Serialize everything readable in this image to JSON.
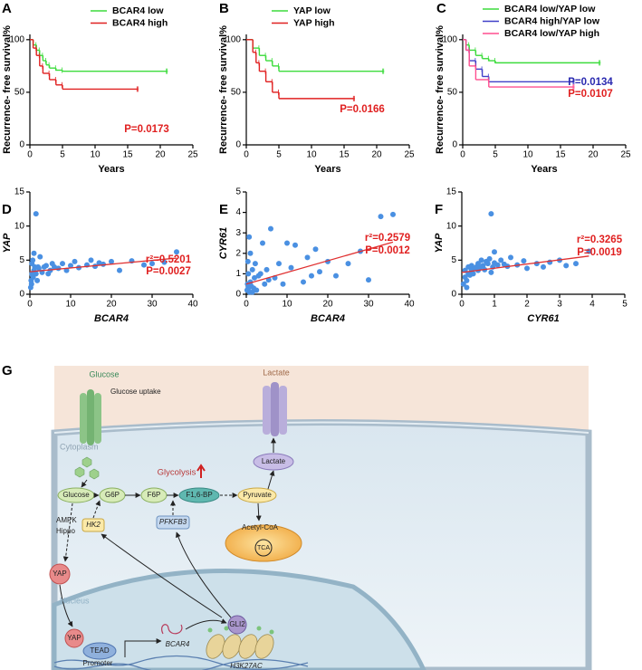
{
  "chart_data": [
    {
      "type": "line",
      "step": true,
      "panel": "A",
      "xlabel": "Years",
      "ylabel": "Recurrence- free survival%",
      "xlim": [
        0,
        25
      ],
      "xticks": [
        0,
        5,
        10,
        15,
        20,
        25
      ],
      "ylim": [
        0,
        105
      ],
      "yticks": [
        0,
        50,
        100
      ],
      "legend": "upper right",
      "series": [
        {
          "name": "BCAR4 low",
          "color": "#3ddc3d",
          "x": [
            0,
            0.5,
            1,
            1.5,
            2,
            2.5,
            3,
            4,
            5,
            21
          ],
          "values": [
            100,
            95,
            90,
            85,
            80,
            76,
            73,
            71,
            70,
            70
          ]
        },
        {
          "name": "BCAR4 high",
          "color": "#e02020",
          "x": [
            0,
            0.5,
            1,
            1.5,
            2,
            3,
            4,
            5,
            16.5
          ],
          "values": [
            100,
            92,
            85,
            75,
            68,
            62,
            57,
            53,
            53
          ]
        }
      ],
      "annotations": [
        {
          "text": "P=0.0173",
          "color": "#e02020"
        }
      ]
    },
    {
      "type": "line",
      "step": true,
      "panel": "B",
      "xlabel": "Years",
      "ylabel": "Recurrence- free survival%",
      "xlim": [
        0,
        25
      ],
      "xticks": [
        0,
        5,
        10,
        15,
        20,
        25
      ],
      "ylim": [
        0,
        105
      ],
      "yticks": [
        0,
        50,
        100
      ],
      "legend": "upper right",
      "series": [
        {
          "name": "YAP low",
          "color": "#3ddc3d",
          "x": [
            0,
            1,
            2,
            3,
            4,
            5,
            21
          ],
          "values": [
            100,
            92,
            85,
            80,
            75,
            70,
            70
          ]
        },
        {
          "name": "YAP high",
          "color": "#e02020",
          "x": [
            0,
            1,
            1.5,
            2,
            3,
            4,
            5,
            16.5
          ],
          "values": [
            100,
            88,
            78,
            70,
            60,
            50,
            44,
            44
          ]
        }
      ],
      "annotations": [
        {
          "text": "P=0.0166",
          "color": "#e02020"
        }
      ]
    },
    {
      "type": "line",
      "step": true,
      "panel": "C",
      "xlabel": "Years",
      "ylabel": "Recurrence- free survival%",
      "xlim": [
        0,
        25
      ],
      "xticks": [
        0,
        5,
        10,
        15,
        20,
        25
      ],
      "ylim": [
        0,
        105
      ],
      "yticks": [
        0,
        50,
        100
      ],
      "legend": "upper right",
      "series": [
        {
          "name": "BCAR4 low/YAP low",
          "color": "#3ddc3d",
          "x": [
            0,
            0.5,
            1,
            2,
            3,
            4,
            5,
            21
          ],
          "values": [
            100,
            95,
            90,
            85,
            82,
            80,
            78,
            78
          ]
        },
        {
          "name": "BCAR4 high/YAP low",
          "color": "#4040c8",
          "x": [
            0,
            0.5,
            1,
            2,
            3,
            4,
            17
          ],
          "values": [
            100,
            90,
            80,
            72,
            65,
            60,
            60
          ]
        },
        {
          "name": "BCAR4 low/YAP high",
          "color": "#ff4f8f",
          "x": [
            0,
            0.5,
            1,
            2,
            4,
            17
          ],
          "values": [
            100,
            90,
            75,
            62,
            55,
            55
          ]
        }
      ],
      "annotations": [
        {
          "text": "P=0.0134",
          "color": "#2a2ab0"
        },
        {
          "text": "P=0.0107",
          "color": "#e02020"
        }
      ]
    },
    {
      "type": "scatter",
      "panel": "D",
      "xlabel": "BCAR4",
      "ylabel": "YAP",
      "xlim": [
        0,
        40
      ],
      "xticks": [
        0,
        10,
        20,
        30,
        40
      ],
      "ylim": [
        0,
        15
      ],
      "yticks": [
        0,
        5,
        10,
        15
      ],
      "series": [
        {
          "color": "#4a90e2",
          "x": [
            0.2,
            0.3,
            0.5,
            0.5,
            0.7,
            0.8,
            1,
            1,
            1.2,
            1.5,
            1.8,
            2,
            2.2,
            2.5,
            3,
            3.5,
            4,
            4.5,
            5,
            5.5,
            6,
            7,
            8,
            9,
            10,
            11,
            12,
            14,
            15,
            16,
            17,
            18,
            20,
            22,
            25,
            28,
            30,
            33,
            36,
            1.5,
            0.4,
            0.6
          ],
          "values": [
            1,
            2,
            3,
            4.5,
            5,
            2.5,
            3.5,
            6,
            4,
            3,
            2,
            4,
            3.8,
            5.5,
            3.2,
            4,
            4.2,
            3,
            3.5,
            4.5,
            4,
            3.8,
            4.5,
            3.5,
            4.2,
            4.8,
            3.9,
            4.3,
            5,
            4.1,
            4.6,
            4.4,
            4.8,
            3.5,
            4.9,
            4.3,
            4.5,
            4.7,
            6.2,
            11.8,
            1.5,
            2.8
          ]
        }
      ],
      "fit": {
        "color": "#e03030",
        "x": [
          0,
          36
        ],
        "values": [
          3.3,
          5.3
        ]
      },
      "annotations": [
        {
          "text": "r²=0.5201",
          "color": "#e02020"
        },
        {
          "text": "P=0.0027",
          "color": "#e02020"
        }
      ]
    },
    {
      "type": "scatter",
      "panel": "E",
      "xlabel": "BCAR4",
      "ylabel": "CYR61",
      "xlim": [
        0,
        40
      ],
      "xticks": [
        0,
        10,
        20,
        30,
        40
      ],
      "ylim": [
        0,
        5
      ],
      "yticks": [
        0,
        1,
        2,
        3,
        4,
        5
      ],
      "series": [
        {
          "color": "#4a90e2",
          "x": [
            0.2,
            0.3,
            0.5,
            0.5,
            0.7,
            0.8,
            1,
            1,
            1.2,
            1.5,
            1.8,
            2,
            2.2,
            2.5,
            3,
            3.5,
            4,
            4.5,
            5,
            5.5,
            6,
            7,
            8,
            9,
            10,
            11,
            12,
            14,
            15,
            16,
            17,
            18,
            20,
            22,
            25,
            28,
            30,
            33,
            36,
            1.5,
            0.4,
            0.6
          ],
          "values": [
            0.2,
            0.5,
            1,
            0.3,
            2.8,
            0.1,
            0.6,
            2,
            0.4,
            1.2,
            0.3,
            0.8,
            1.5,
            0.2,
            0.9,
            1,
            2.5,
            0.5,
            1.2,
            0.7,
            3.2,
            0.8,
            1.5,
            0.5,
            2.5,
            1.3,
            2.4,
            0.6,
            1.8,
            0.9,
            2.2,
            1.1,
            1.6,
            0.9,
            1.5,
            2.1,
            0.7,
            3.8,
            3.9,
            0.1,
            1.6,
            0.4
          ]
        }
      ],
      "fit": {
        "color": "#e03030",
        "x": [
          0,
          36
        ],
        "values": [
          0.5,
          2.55
        ]
      },
      "annotations": [
        {
          "text": "r²=0.2579",
          "color": "#e02020"
        },
        {
          "text": "P=0.0012",
          "color": "#e02020"
        }
      ]
    },
    {
      "type": "scatter",
      "panel": "F",
      "xlabel": "CYR61",
      "ylabel": "YAP",
      "xlim": [
        0,
        5
      ],
      "xticks": [
        0,
        1,
        2,
        3,
        4,
        5
      ],
      "ylim": [
        0,
        15
      ],
      "yticks": [
        0,
        5,
        10,
        15
      ],
      "series": [
        {
          "color": "#4a90e2",
          "x": [
            0.05,
            0.1,
            0.1,
            0.15,
            0.2,
            0.2,
            0.25,
            0.3,
            0.3,
            0.35,
            0.4,
            0.45,
            0.5,
            0.5,
            0.55,
            0.6,
            0.65,
            0.7,
            0.75,
            0.8,
            0.85,
            0.9,
            0.95,
            1,
            1,
            1.1,
            1.2,
            1.3,
            1.4,
            1.5,
            1.7,
            1.9,
            2,
            2.3,
            2.5,
            2.7,
            3,
            3.2,
            3.5,
            3.9,
            0.9,
            0.15
          ],
          "values": [
            1.5,
            2.5,
            3.5,
            2,
            3,
            4,
            2.8,
            3.5,
            4.2,
            3,
            3.8,
            4,
            3.5,
            4.5,
            3.9,
            5,
            4.2,
            3.6,
            4.8,
            4.5,
            5.2,
            11.8,
            4,
            4.6,
            6.2,
            4.3,
            5,
            4.4,
            4.1,
            5.4,
            4.3,
            4.9,
            3.8,
            4.5,
            4,
            4.7,
            5,
            4.2,
            4.5,
            6.3,
            3.2,
            1
          ]
        }
      ],
      "fit": {
        "color": "#e03030",
        "x": [
          0,
          3.9
        ],
        "values": [
          3.2,
          5.6
        ]
      },
      "annotations": [
        {
          "text": "r²=0.3265",
          "color": "#e02020"
        },
        {
          "text": "P=0.0019",
          "color": "#e02020"
        }
      ]
    }
  ],
  "diagram": {
    "panel": "G",
    "glucose_out": "Glucose",
    "glucose_uptake": "Glucose uptake",
    "cytoplasm": "Cytoplasm",
    "glycolysis": "Glycolysis",
    "lactate_out": "Lactate",
    "glucose": "Glucose",
    "g6p": "G6P",
    "f6p": "F6P",
    "f16bp": "F1,6-BP",
    "pyruvate": "Pyruvate",
    "lactate": "Lactate",
    "hk2": "HK2",
    "pfkfb3": "PFKFB3",
    "acetyl_coa": "Acetyl-CoA",
    "tca": "TCA",
    "ampk": "AMPK",
    "hippo": "Hippo",
    "yap_cyto": "YAP",
    "nucleus": "Nucleus",
    "yap_nuc": "YAP",
    "tead": "TEAD",
    "bcar4": "BCAR4",
    "gli2": "GLI2",
    "promoter": "Promoter",
    "h3k27ac": "H3K27AC"
  }
}
